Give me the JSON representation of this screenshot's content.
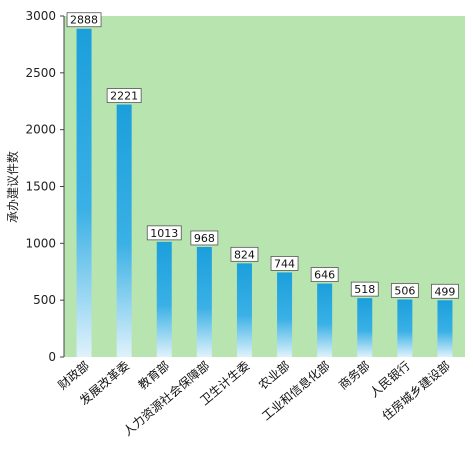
{
  "chart_data": {
    "type": "bar",
    "title": "",
    "xlabel": "",
    "ylabel": "承办建议件数",
    "ylim": [
      0,
      3000
    ],
    "yticks": [
      0,
      500,
      1000,
      1500,
      2000,
      2500,
      3000
    ],
    "grid": false,
    "legend": "none",
    "categories": [
      "财政部",
      "发展改革委",
      "教育部",
      "人力资源社会保障部",
      "卫生计生委",
      "农业部",
      "工业和信息化部",
      "商务部",
      "人民银行",
      "住房城乡建设部"
    ],
    "values": [
      2888,
      2221,
      1013,
      968,
      824,
      744,
      646,
      518,
      506,
      499
    ],
    "colors": {
      "plot_background": "#b8e4b0",
      "bar_top": "#1b9fdc",
      "bar_bottom": "#dff2fb",
      "label_box_border": "#555555"
    }
  }
}
